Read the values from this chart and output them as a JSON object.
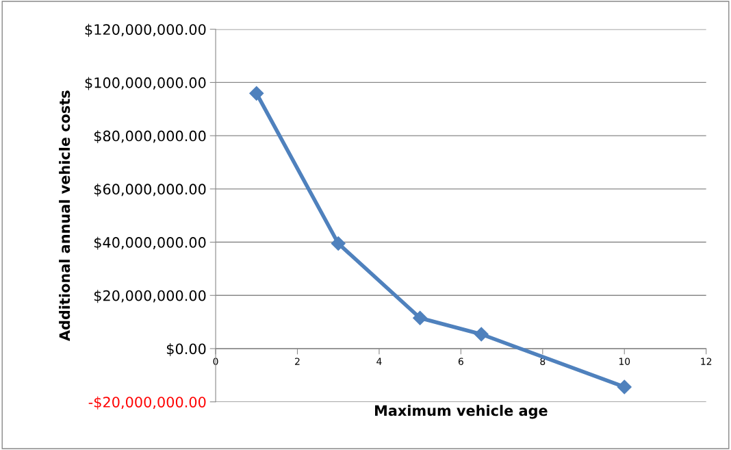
{
  "chart_data": {
    "type": "line",
    "xlabel": "Maximum vehicle age",
    "ylabel": "Additional annual vehicle costs",
    "x": [
      1,
      3,
      5,
      6.5,
      10
    ],
    "series": [
      {
        "color": "#4f81bd",
        "values": [
          95900000,
          39500000,
          11500000,
          5400000,
          -14400000
        ]
      }
    ],
    "xlim": [
      0,
      12
    ],
    "xticks": [
      0,
      2,
      4,
      6,
      8,
      10,
      12
    ],
    "ylim": [
      -20000000,
      120000000
    ],
    "yticks": [
      {
        "value": -20000000,
        "label": "-$20,000,000.00"
      },
      {
        "value": 0,
        "label": "$0.00"
      },
      {
        "value": 20000000,
        "label": "$20,000,000.00"
      },
      {
        "value": 40000000,
        "label": "$40,000,000.00"
      },
      {
        "value": 60000000,
        "label": "$60,000,000.00"
      },
      {
        "value": 80000000,
        "label": "$80,000,000.00"
      },
      {
        "value": 100000000,
        "label": "$100,000,000.00"
      },
      {
        "value": 120000000,
        "label": "$120,000,000.00"
      }
    ],
    "grid": "y",
    "legend": false,
    "marker": "diamond",
    "line_style": "solid"
  }
}
